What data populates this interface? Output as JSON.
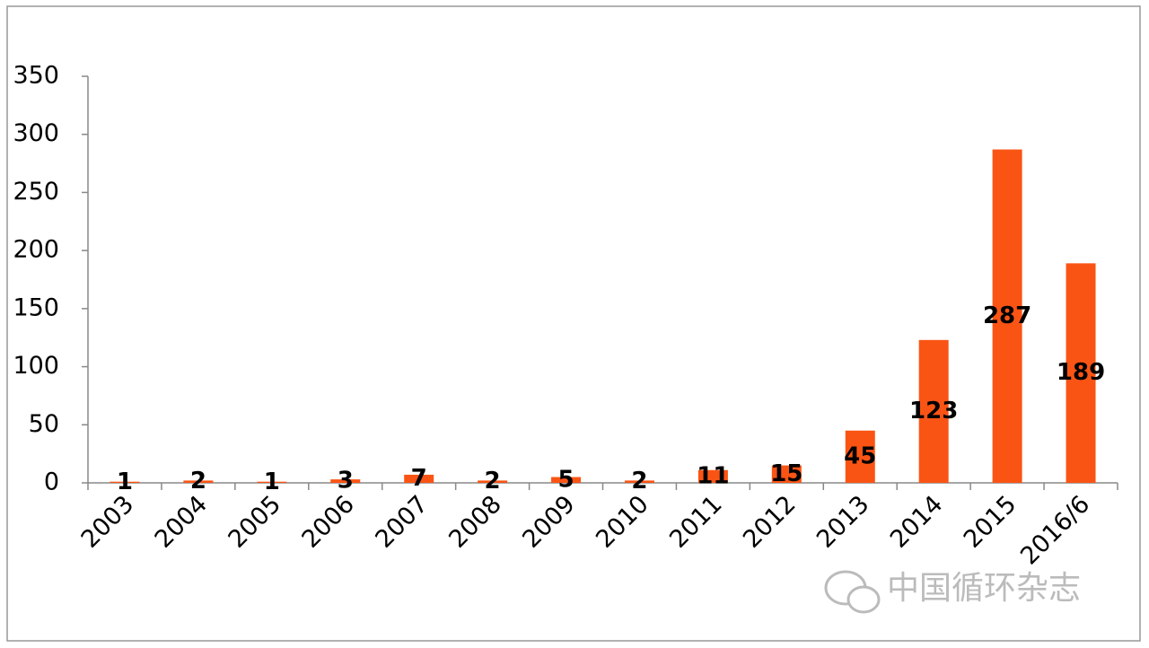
{
  "chart_data": {
    "type": "bar",
    "categories": [
      "2003",
      "2004",
      "2005",
      "2006",
      "2007",
      "2008",
      "2009",
      "2010",
      "2011",
      "2012",
      "2013",
      "2014",
      "2015",
      "2016/6"
    ],
    "values": [
      1,
      2,
      1,
      3,
      7,
      2,
      5,
      2,
      11,
      15,
      45,
      123,
      287,
      189
    ],
    "color": "#fa5414",
    "ylim": [
      0,
      350
    ],
    "yticks": [
      0,
      50,
      100,
      150,
      200,
      250,
      300,
      350
    ],
    "grid": false
  },
  "watermark": "中国循环杂志"
}
